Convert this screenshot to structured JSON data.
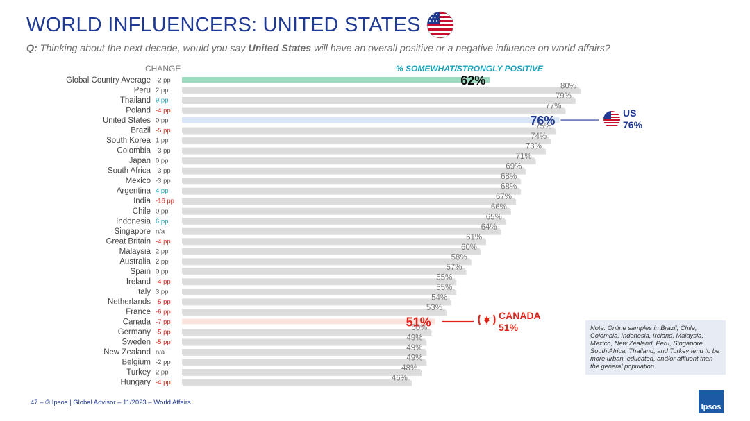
{
  "title": "WORLD INFLUENCERS: UNITED STATES",
  "question": {
    "prefix": "Q:",
    "part1": "Thinking about the next decade, would you say",
    "bold": "United States",
    "part2": "will have an overall positive or a negative influence on world affairs?"
  },
  "columns": {
    "change": "CHANGE",
    "positive": "% SOMEWHAT/STRONGLY POSITIVE"
  },
  "callouts": {
    "us": {
      "label": "US",
      "value": "76%"
    },
    "canada": {
      "label": "CANADA",
      "value": "51%"
    }
  },
  "note": "Note: Online samples in Brazil, Chile, Colombia, Indonesia, Ireland, Malaysia, Mexico, New Zealand, Peru, Singapore, South Africa, Thailand, and Turkey tend to be more urban, educated, and/or affluent than the general population.",
  "footer": "47 –   © Ipsos | Global Advisor – 11/2023 – World Affairs",
  "logo": "Ipsos",
  "colors": {
    "title_blue": "#1f3a93",
    "teal": "#1aa3b8",
    "red": "#e2231a",
    "bar_gray": "#dcdcdc",
    "bar_green": "#9fd9bf",
    "bar_us": "#d9e6f7",
    "bar_canada": "#fbe3dd",
    "change_dark": "#555555"
  },
  "chart_data": {
    "type": "bar",
    "orientation": "horizontal",
    "categories": [
      "Global Country Average",
      "Peru",
      "Thailand",
      "Poland",
      "United States",
      "Brazil",
      "South Korea",
      "Colombia",
      "Japan",
      "South Africa",
      "Mexico",
      "Argentina",
      "India",
      "Chile",
      "Indonesia",
      "Singapore",
      "Great Britain",
      "Malaysia",
      "Australia",
      "Spain",
      "Ireland",
      "Italy",
      "Netherlands",
      "France",
      "Canada",
      "Germany",
      "Sweden",
      "New Zealand",
      "Belgium",
      "Turkey",
      "Hungary"
    ],
    "values": [
      62,
      80,
      79,
      77,
      76,
      75,
      74,
      73,
      71,
      69,
      68,
      68,
      67,
      66,
      65,
      64,
      61,
      60,
      58,
      57,
      55,
      55,
      54,
      53,
      51,
      50,
      49,
      49,
      49,
      48,
      46
    ],
    "value_labels": [
      "62%",
      "80%",
      "79%",
      "77%",
      "76%",
      "75%",
      "74%",
      "73%",
      "71%",
      "69%",
      "68%",
      "68%",
      "67%",
      "66%",
      "65%",
      "64%",
      "61%",
      "60%",
      "58%",
      "57%",
      "55%",
      "55%",
      "54%",
      "53%",
      "51%",
      "50%",
      "49%",
      "49%",
      "49%",
      "48%",
      "46%"
    ],
    "change": [
      "-2 pp",
      "2 pp",
      "9 pp",
      "-4 pp",
      "0 pp",
      "-5 pp",
      "1 pp",
      "-3 pp",
      "0 pp",
      "-3 pp",
      "-3 pp",
      "4 pp",
      "-16 pp",
      "0 pp",
      "6 pp",
      "n/a",
      "-4 pp",
      "2 pp",
      "2 pp",
      "0 pp",
      "-4 pp",
      "3 pp",
      "-5 pp",
      "-6 pp",
      "-7 pp",
      "-5 pp",
      "-5 pp",
      "n/a",
      "-2 pp",
      "2 pp",
      "-4 pp"
    ],
    "change_color": [
      "dark",
      "dark",
      "teal",
      "red",
      "dark",
      "red",
      "dark",
      "dark",
      "dark",
      "dark",
      "dark",
      "teal",
      "red",
      "dark",
      "teal",
      "dark",
      "red",
      "dark",
      "dark",
      "dark",
      "red",
      "dark",
      "red",
      "red",
      "red",
      "red",
      "red",
      "dark",
      "dark",
      "dark",
      "red"
    ],
    "highlight": [
      "average",
      "",
      "",
      "",
      "us",
      "",
      "",
      "",
      "",
      "",
      "",
      "",
      "",
      "",
      "",
      "",
      "",
      "",
      "",
      "",
      "",
      "",
      "",
      "",
      "canada",
      "",
      "",
      "",
      "",
      "",
      ""
    ],
    "xlim": [
      0,
      100
    ]
  }
}
